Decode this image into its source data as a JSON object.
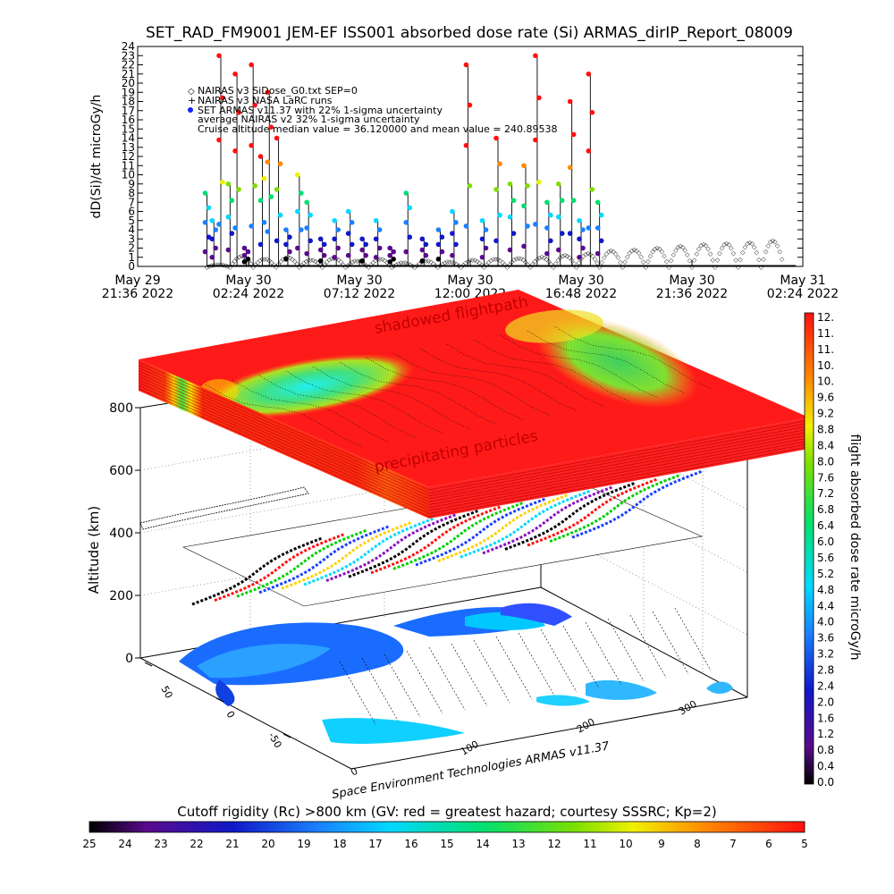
{
  "title": "SET_RAD_FM9001  JEM-EF ISS001 absorbed dose rate (Si) ARMAS_dirIP_Report_08009",
  "chart_data": [
    {
      "type": "line",
      "ylabel": "dD(Si)/dt microGy/h",
      "ylim": [
        0,
        24
      ],
      "yticks": [
        0,
        1,
        2,
        3,
        4,
        5,
        6,
        7,
        8,
        9,
        10,
        11,
        12,
        13,
        14,
        15,
        16,
        17,
        18,
        19,
        20,
        21,
        22,
        23,
        24
      ],
      "xticks": [
        {
          "l1": "May 29",
          "l2": "21:36 2022"
        },
        {
          "l1": "May 30",
          "l2": "02:24 2022"
        },
        {
          "l1": "May 30",
          "l2": "07:12 2022"
        },
        {
          "l1": "May 30",
          "l2": "12:00 2022"
        },
        {
          "l1": "May 30",
          "l2": "16:48 2022"
        },
        {
          "l1": "May 30",
          "l2": "21:36 2022"
        },
        {
          "l1": "May 31",
          "l2": "02:24 2022"
        }
      ],
      "legend": [
        {
          "marker": "◇",
          "text": "NAIRAS v3 SiDose_G0.txt SEP=0"
        },
        {
          "marker": "+",
          "text": "NAIRAS v3 NASA LaRC runs"
        },
        {
          "marker": "●",
          "text": "SET ARMAS v11.37 with 22% 1-sigma uncertainty"
        },
        {
          "marker": "",
          "text": "average NAIRAS v2 32% 1-sigma uncertainty"
        },
        {
          "marker": "",
          "text": "Cruise altitude median value = 36.120000 and mean value = 240.89538"
        }
      ],
      "series": [
        {
          "name": "NAIRAS v3 SiDose_G0.txt SEP=0",
          "x_hours_from_first_tick": [
            3.0,
            4.0,
            5.0,
            6.0,
            7.0,
            8.0,
            9.0,
            10.0,
            11.0,
            12.0,
            13.0,
            14.0,
            15.0,
            16.0,
            17.0,
            18.0,
            19.0,
            20.0,
            21.0,
            22.0,
            23.0,
            24.0,
            25.0,
            26.0,
            27.0
          ],
          "values": [
            0.3,
            1.2,
            0.9,
            1.1,
            0.8,
            1.0,
            0.7,
            0.9,
            0.5,
            0.7,
            0.6,
            0.8,
            0.9,
            1.0,
            1.1,
            1.3,
            1.5,
            1.8,
            1.9,
            2.1,
            2.3,
            2.5,
            2.6,
            2.7,
            2.9
          ]
        },
        {
          "name": "SET ARMAS v11.37 with 22% 1-sigma uncertainty",
          "x_hours_from_first_tick": [
            3.0,
            3.3,
            3.6,
            4.0,
            4.3,
            4.7,
            5.0,
            5.4,
            5.7,
            6.1,
            6.5,
            7.0,
            7.4,
            8.0,
            8.6,
            9.2,
            9.8,
            10.4,
            11.0,
            11.7,
            12.4,
            13.1,
            13.7,
            14.3,
            15.0,
            15.6,
            16.2,
            16.8,
            17.3,
            17.8,
            18.3,
            18.8,
            19.2,
            19.6,
            20.0
          ],
          "values": [
            8,
            5,
            23,
            9,
            21,
            2,
            22,
            12,
            19,
            14,
            4,
            10,
            7,
            3,
            5,
            6,
            3,
            5,
            2,
            8,
            3,
            4,
            6,
            22,
            5,
            14,
            9,
            11,
            23,
            7,
            9,
            18,
            5,
            21,
            7
          ]
        }
      ]
    },
    {
      "type": "heatmap",
      "name": "3D orbit display",
      "zlabel": "Altitude (km)",
      "zticks": [
        "0",
        "200",
        "400",
        "600",
        "800"
      ],
      "lat_ticks": [
        "50",
        "0",
        "-50"
      ],
      "lon_ticks": [
        "0",
        "100",
        "200",
        "300"
      ],
      "annotations": [
        "shadowed flightpath",
        "precipitating particles"
      ],
      "credit": "Space Environment Technologies ARMAS v11.37"
    },
    {
      "type": "heatmap",
      "name": "dose rate colorbar",
      "label": "flight absorbed dose rate microGy/h",
      "range": [
        0.0,
        12.0
      ],
      "tick_labels": [
        "12.",
        "11.",
        "11.",
        "10.",
        "10.",
        "9.6",
        "9.2",
        "8.8",
        "8.4",
        "8.0",
        "7.6",
        "7.2",
        "6.8",
        "6.4",
        "6.0",
        "5.6",
        "5.2",
        "4.8",
        "4.4",
        "4.0",
        "3.6",
        "3.2",
        "2.8",
        "2.4",
        "2.0",
        "1.6",
        "1.2",
        "0.8",
        "0.4",
        "0.0"
      ]
    },
    {
      "type": "heatmap",
      "name": "cutoff rigidity colorbar",
      "label": "Cutoff rigidity (Rc) >800 km (GV: red = greatest hazard; courtesy SSSRC; Kp=2)",
      "tick_labels": [
        "25",
        "24",
        "23",
        "22",
        "21",
        "20",
        "19",
        "18",
        "17",
        "16",
        "15",
        "14",
        "13",
        "12",
        "11",
        "10",
        "9",
        "8",
        "7",
        "6",
        "5"
      ]
    }
  ]
}
